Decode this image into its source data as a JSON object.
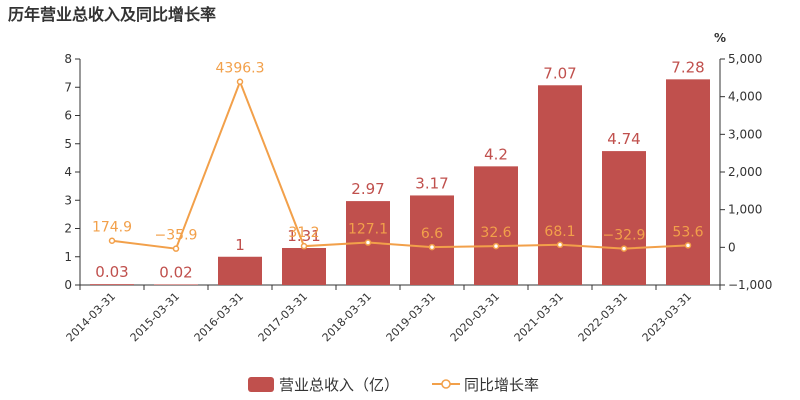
{
  "chart_data": {
    "type": "bar",
    "title": "历年营业总收入及同比增长率",
    "categories": [
      "2014-03-31",
      "2015-03-31",
      "2016-03-31",
      "2017-03-31",
      "2018-03-31",
      "2019-03-31",
      "2020-03-31",
      "2021-03-31",
      "2022-03-31",
      "2023-03-31"
    ],
    "series": [
      {
        "name": "营业总收入（亿）",
        "type": "bar",
        "axis": "left",
        "color": "#c0504d",
        "values": [
          0.03,
          0.02,
          1,
          1.31,
          2.97,
          3.17,
          4.2,
          7.07,
          4.74,
          7.28
        ],
        "labels": [
          "0.03",
          "0.02",
          "1",
          "1.31",
          "2.97",
          "3.17",
          "4.2",
          "7.07",
          "4.74",
          "7.28"
        ]
      },
      {
        "name": "同比增长率",
        "type": "line",
        "axis": "right",
        "color": "#f2a04a",
        "values": [
          174.9,
          -35.9,
          4396.3,
          31.2,
          127.1,
          6.6,
          32.6,
          68.1,
          -32.9,
          53.6
        ],
        "labels": [
          "174.9",
          "-35.9",
          "4396.3",
          "31.2",
          "127.1",
          "6.6",
          "32.6",
          "68.1",
          "-32.9",
          "53.6"
        ]
      }
    ],
    "y_left": {
      "min": 0,
      "max": 8,
      "ticks": [
        "0",
        "1",
        "2",
        "3",
        "4",
        "5",
        "6",
        "7",
        "8"
      ]
    },
    "y_right": {
      "min": -1000,
      "max": 5000,
      "unit": "%",
      "ticks": [
        "-1,000",
        "0",
        "1,000",
        "2,000",
        "3,000",
        "4,000",
        "5,000"
      ]
    },
    "legend": {
      "position": "bottom"
    },
    "grid": false
  }
}
